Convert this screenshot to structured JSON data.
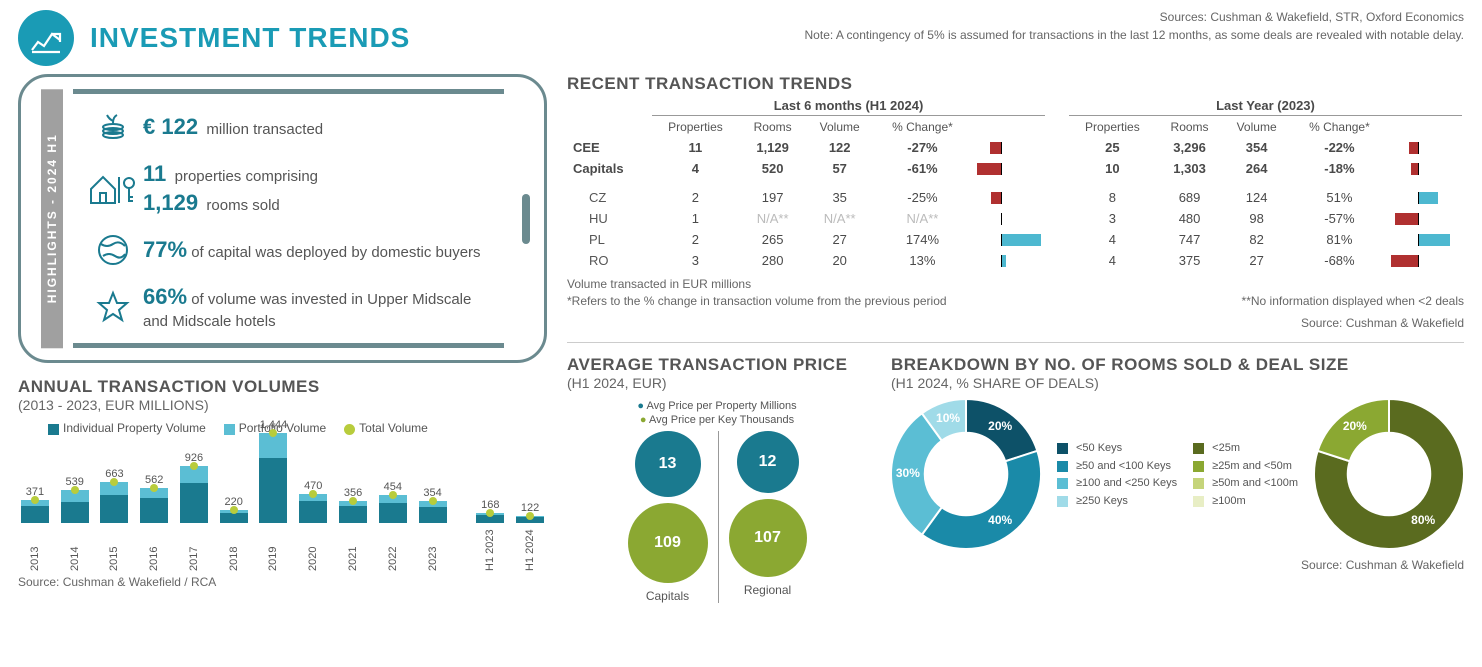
{
  "colors": {
    "teal": "#1a7a8f",
    "cyan": "#4db8d0",
    "lime": "#8ba832",
    "darkteal": "#0d5168",
    "red": "#b03030",
    "grey": "#888"
  },
  "header": {
    "title": "INVESTMENT TRENDS",
    "sources": "Sources: Cushman & Wakefield, STR, Oxford Economics",
    "note": "Note: A contingency of 5% is assumed for transactions in the last 12 months, as some deals are revealed with notable delay."
  },
  "highlights": {
    "sidebar": "HIGHLIGHTS - 2024 H1",
    "r1_big": "€ 122",
    "r1_text": "million transacted",
    "r2a_big": "11",
    "r2a_text": "properties comprising",
    "r2b_big": "1,129",
    "r2b_text": "rooms sold",
    "r3_big": "77%",
    "r3_text": "of capital was deployed by domestic buyers",
    "r4_big": "66%",
    "r4_text": "of volume was invested in Upper Midscale and Midscale hotels"
  },
  "annual": {
    "title": "ANNUAL TRANSACTION VOLUMES",
    "sub": "(2013 - 2023, EUR MILLIONS)",
    "legend": {
      "a": "Individual Property Volume",
      "b": "Portfolio Volume",
      "c": "Total Volume"
    },
    "years": [
      "2013",
      "2014",
      "2015",
      "2016",
      "2017",
      "2018",
      "2019",
      "2020",
      "2021",
      "2022",
      "2023",
      "H1 2023",
      "H1 2024"
    ],
    "totals": [
      371,
      539,
      663,
      562,
      926,
      220,
      1444,
      470,
      356,
      454,
      354,
      168,
      122
    ],
    "indiv": [
      280,
      340,
      450,
      400,
      650,
      160,
      1050,
      350,
      280,
      330,
      260,
      130,
      100
    ],
    "port": [
      91,
      199,
      213,
      162,
      276,
      60,
      394,
      120,
      76,
      124,
      94,
      38,
      22
    ],
    "max": 1444,
    "source": "Source: Cushman & Wakefield / RCA"
  },
  "trans": {
    "title": "RECENT TRANSACTION TRENDS",
    "p1": "Last 6 months (H1 2024)",
    "p2": "Last Year (2023)",
    "cols": [
      "Properties",
      "Rooms",
      "Volume",
      "% Change*"
    ],
    "rows": [
      {
        "lbl": "CEE",
        "bold": true,
        "a": [
          "11",
          "1,129",
          "122",
          "-27%"
        ],
        "ac": -27,
        "b": [
          "25",
          "3,296",
          "354",
          "-22%"
        ],
        "bc": -22
      },
      {
        "lbl": "Capitals",
        "bold": true,
        "a": [
          "4",
          "520",
          "57",
          "-61%"
        ],
        "ac": -61,
        "b": [
          "10",
          "1,303",
          "264",
          "-18%"
        ],
        "bc": -18
      },
      {
        "spacer": true
      },
      {
        "lbl": "CZ",
        "a": [
          "2",
          "197",
          "35",
          "-25%"
        ],
        "ac": -25,
        "b": [
          "8",
          "689",
          "124",
          "51%"
        ],
        "bc": 51
      },
      {
        "lbl": "HU",
        "a": [
          "1",
          "N/A**",
          "N/A**",
          "N/A**"
        ],
        "ac": 0,
        "na": true,
        "b": [
          "3",
          "480",
          "98",
          "-57%"
        ],
        "bc": -57
      },
      {
        "lbl": "PL",
        "a": [
          "2",
          "265",
          "27",
          "174%"
        ],
        "ac": 174,
        "b": [
          "4",
          "747",
          "82",
          "81%"
        ],
        "bc": 81
      },
      {
        "lbl": "RO",
        "a": [
          "3",
          "280",
          "20",
          "13%"
        ],
        "ac": 13,
        "b": [
          "4",
          "375",
          "27",
          "-68%"
        ],
        "bc": -68
      }
    ],
    "n1": "Volume transacted in EUR millions",
    "n2": "*Refers to the % change in transaction volume from the previous period",
    "n3": "**No information displayed when <2 deals",
    "source": "Source: Cushman & Wakefield"
  },
  "avg": {
    "title": "AVERAGE TRANSACTION PRICE",
    "sub": "(H1 2024, EUR)",
    "l1": "Avg Price per Property Millions",
    "l2": "Avg Price per Key Thousands",
    "cap_prop": 13,
    "cap_key": 109,
    "reg_prop": 12,
    "reg_key": 107,
    "capLabel": "Capitals",
    "regLabel": "Regional"
  },
  "breakdown": {
    "title": "BREAKDOWN BY NO. OF ROOMS SOLD & DEAL SIZE",
    "sub": "(H1 2024, % SHARE OF DEALS)",
    "keys": {
      "labels": [
        "<50 Keys",
        "≥50 and <100 Keys",
        "≥100 and <250 Keys",
        "≥250 Keys"
      ],
      "vals": [
        20,
        40,
        30,
        10
      ],
      "colors": [
        "#0d5168",
        "#1a8aa8",
        "#5bbed4",
        "#a0dbe8"
      ]
    },
    "size": {
      "labels": [
        "<25m",
        "≥25m and <50m",
        "≥50m and <100m",
        "≥100m"
      ],
      "vals": [
        80,
        20,
        0,
        0
      ],
      "colors": [
        "#5a6b1f",
        "#8ba832",
        "#c5d47a",
        "#e8eec5"
      ]
    },
    "source": "Source: Cushman & Wakefield"
  }
}
